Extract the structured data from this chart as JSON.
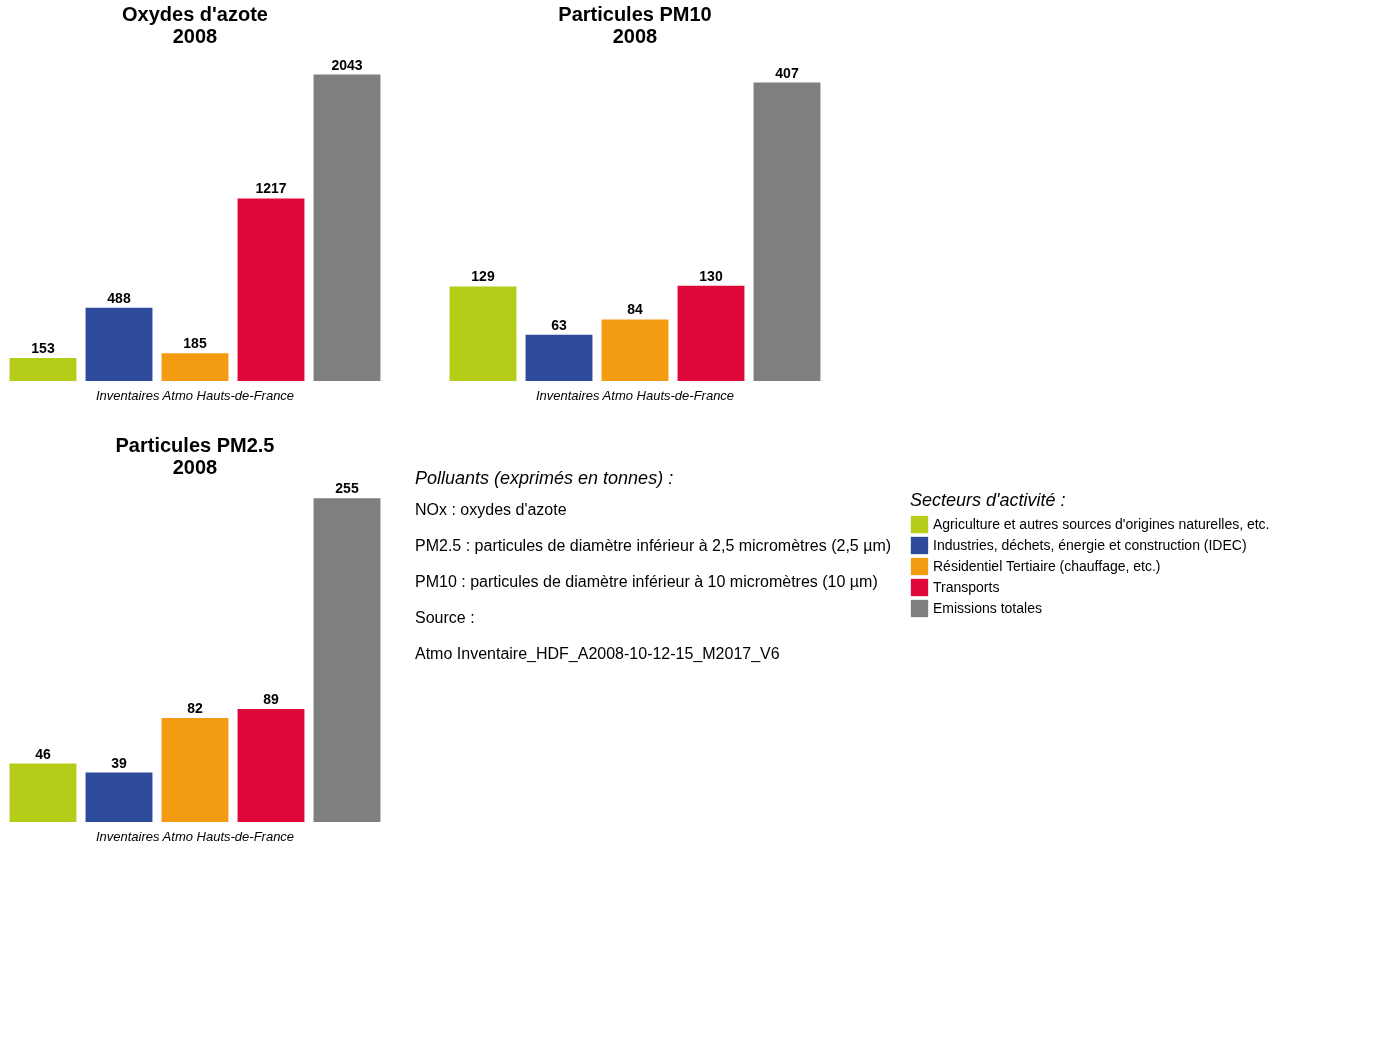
{
  "chart_data": [
    {
      "type": "bar",
      "title": [
        "Oxydes d'azote",
        "2008"
      ],
      "categories": [
        null,
        null,
        null,
        null,
        null
      ],
      "values": [
        153,
        488,
        185,
        1217,
        2043
      ],
      "colors": [
        "#b5cc18",
        "#2e4a9a",
        "#f39c12",
        "#e0083a",
        "#7f7f7f"
      ],
      "data_labels": true,
      "annotations": [
        "Inventaires Atmo Hauts-de-France"
      ]
    },
    {
      "type": "bar",
      "title": [
        "Particules PM10",
        "2008"
      ],
      "categories": [
        null,
        null,
        null,
        null,
        null
      ],
      "values": [
        129,
        63,
        84,
        130,
        407
      ],
      "colors": [
        "#b5cc18",
        "#2e4a9a",
        "#f39c12",
        "#e0083a",
        "#7f7f7f"
      ],
      "data_labels": true,
      "annotations": [
        "Inventaires Atmo Hauts-de-France"
      ]
    },
    {
      "type": "bar",
      "title": [
        "Particules PM2.5",
        "2008"
      ],
      "categories": [
        null,
        null,
        null,
        null,
        null
      ],
      "data_labels": true,
      "legend": "right",
      "legend_title": "Secteurs d'activité :",
      "annotations": [
        "Inventaires Atmo Hauts-de-France"
      ],
      "series": [
        {
          "name": "Agriculture et autres sources d'origines naturelles, etc.",
          "color": "#b5cc18",
          "values": [
            46,
            null,
            null,
            null,
            null
          ]
        },
        {
          "name": "Industries, déchets, énergie et construction (IDEC)",
          "color": "#2e4a9a",
          "values": [
            null,
            39,
            null,
            null,
            null
          ]
        },
        {
          "name": "Résidentiel Tertiaire (chauffage, etc.)",
          "color": "#f39c12",
          "values": [
            null,
            null,
            82,
            null,
            null
          ]
        },
        {
          "name": "Transports",
          "color": "#e0083a",
          "values": [
            null,
            null,
            null,
            89,
            null
          ]
        },
        {
          "name": "Emissions totales",
          "color": "#7f7f7f",
          "values": [
            null,
            null,
            null,
            null,
            255
          ]
        }
      ]
    },
    {
      "type": "other",
      "title": "Polluants (exprimés en tonnes) :",
      "annotations": [
        "NOx : oxydes d'azote",
        "PM2.5 : particules de diamètre inférieur à 2,5 micromètres (2,5 µm)",
        "PM10 : particules de diamètre inférieur à 10 micromètres (10 µm)",
        "Source :",
        "Atmo Inventaire_HDF_A2008-10-12-15_M2017_V6"
      ]
    }
  ]
}
